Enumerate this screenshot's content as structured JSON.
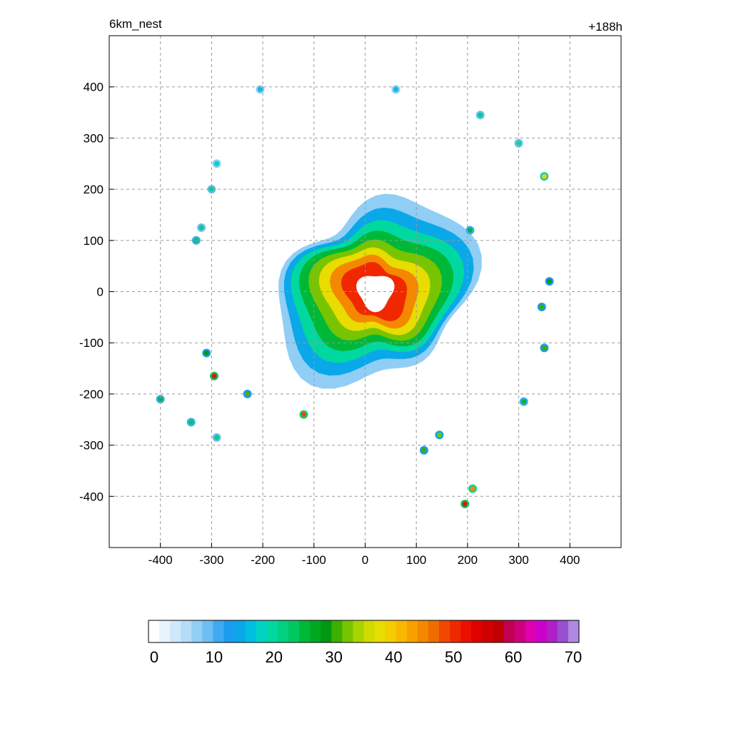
{
  "chart_data": {
    "type": "heatmap",
    "title_left": "6km_nest",
    "title_right": "+188h",
    "xlim": [
      -500,
      500
    ],
    "ylim": [
      -500,
      500
    ],
    "x_ticks": [
      -400,
      -300,
      -200,
      -100,
      0,
      100,
      200,
      300,
      400
    ],
    "y_ticks": [
      400,
      300,
      200,
      100,
      0,
      -100,
      -200,
      -300,
      -400
    ],
    "grid": true,
    "colorbar": {
      "min": 0,
      "max": 70,
      "ticks": [
        0,
        10,
        20,
        30,
        40,
        50,
        60,
        70
      ],
      "colors": [
        "#ffffff",
        "#e8f4fc",
        "#cfe8fa",
        "#b4dcf8",
        "#90cef5",
        "#6cbef3",
        "#3eaaf2",
        "#1c9cf0",
        "#0aa8e8",
        "#00bfe0",
        "#00d2c4",
        "#00d8a0",
        "#00d080",
        "#00c860",
        "#00b838",
        "#00a820",
        "#009810",
        "#3cb000",
        "#78c400",
        "#a8d400",
        "#d0dc00",
        "#e8dc00",
        "#f4cc00",
        "#f8b800",
        "#f8a000",
        "#f48800",
        "#f06c00",
        "#f04800",
        "#f02800",
        "#ec1000",
        "#e00000",
        "#d00000",
        "#c00000",
        "#c00050",
        "#d0007c",
        "#e000b0",
        "#cc00cc",
        "#b020c8",
        "#9850d0",
        "#b088e0"
      ]
    },
    "storm": {
      "center": [
        20,
        0
      ],
      "eye_radius": 35,
      "max_value": 52
    }
  }
}
